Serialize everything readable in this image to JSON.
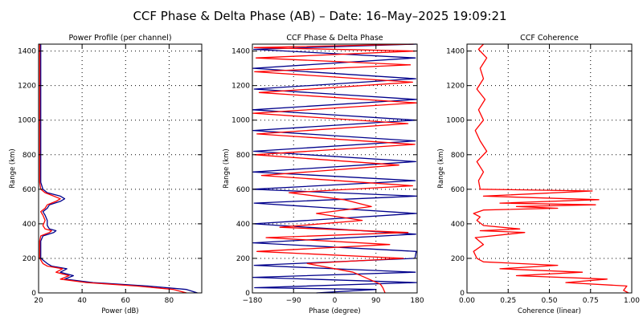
{
  "figure": {
    "title": "CCF Phase & Delta Phase (AB) – Date: 16–May–2025 19:09:21"
  },
  "colors": {
    "channel_a": "#00008b",
    "channel_b": "#ff0000",
    "axis": "#000000",
    "grid": "#000000"
  },
  "chart_data": [
    {
      "type": "line",
      "title": "Power Profile (per channel)",
      "xlabel": "Power (dB)",
      "ylabel": "Range (km)",
      "xlim": [
        20,
        95
      ],
      "ylim": [
        0,
        1440
      ],
      "xticks": [
        "20",
        "40",
        "60",
        "80"
      ],
      "xtick_values": [
        20,
        40,
        60,
        80
      ],
      "yticks": [
        "0",
        "200",
        "400",
        "600",
        "800",
        "1000",
        "1200",
        "1400"
      ],
      "ytick_values": [
        0,
        200,
        400,
        600,
        800,
        1000,
        1200,
        1400
      ],
      "grid": true,
      "series": [
        {
          "color": "#00008b",
          "x": [
            93,
            88,
            70,
            45,
            32,
            36,
            30,
            33,
            26,
            24,
            21,
            21,
            21,
            22,
            27,
            28,
            25,
            24,
            24,
            23,
            22,
            24,
            25,
            30,
            32,
            30,
            24,
            22,
            21,
            21,
            21,
            21,
            21,
            21,
            21,
            21,
            21,
            21
          ],
          "y": [
            0,
            20,
            40,
            60,
            80,
            100,
            120,
            140,
            155,
            170,
            200,
            260,
            300,
            330,
            350,
            360,
            370,
            390,
            420,
            450,
            470,
            490,
            510,
            530,
            545,
            560,
            580,
            600,
            640,
            700,
            800,
            900,
            1000,
            1100,
            1200,
            1300,
            1400,
            1440
          ]
        },
        {
          "color": "#ff0000",
          "x": [
            88,
            82,
            65,
            42,
            30,
            34,
            28,
            31,
            24,
            22,
            20.5,
            20.5,
            20.5,
            21,
            25,
            26,
            23,
            22,
            23,
            22,
            21,
            23,
            24,
            28,
            30,
            27,
            23,
            21,
            20.5,
            20.5,
            20.5,
            20.5,
            20.5,
            20.5,
            20.5,
            20.5,
            20.5,
            20.5
          ],
          "y": [
            0,
            20,
            40,
            60,
            80,
            100,
            120,
            140,
            155,
            170,
            200,
            260,
            300,
            330,
            350,
            360,
            370,
            390,
            420,
            450,
            470,
            490,
            510,
            530,
            545,
            560,
            580,
            600,
            640,
            700,
            800,
            900,
            1000,
            1100,
            1200,
            1300,
            1400,
            1440
          ]
        }
      ]
    },
    {
      "type": "line",
      "title": "CCF Phase & Delta Phase",
      "xlabel": "Phase (degree)",
      "ylabel": "Range (km)",
      "xlim": [
        -180,
        180
      ],
      "ylim": [
        0,
        1440
      ],
      "xticks": [
        "−180",
        "−90",
        "0",
        "90",
        "180"
      ],
      "xtick_values": [
        -180,
        -90,
        0,
        90,
        180
      ],
      "yticks": [
        "0",
        "200",
        "400",
        "600",
        "800",
        "1000",
        "1200",
        "1400"
      ],
      "ytick_values": [
        0,
        200,
        400,
        600,
        800,
        1000,
        1200,
        1400
      ],
      "grid": true,
      "series": [
        {
          "color": "#00008b",
          "x": [
            -40,
            90,
            -175,
            178,
            -178,
            176,
            -176,
            175,
            178,
            -178,
            177,
            -177,
            178,
            -176,
            179,
            -179,
            176,
            -178,
            177,
            -177,
            176,
            -178,
            177,
            -179,
            178,
            -176,
            177,
            -178,
            176,
            -177,
            178
          ],
          "y": [
            0,
            20,
            30,
            60,
            90,
            120,
            160,
            200,
            240,
            290,
            340,
            400,
            460,
            520,
            560,
            600,
            650,
            700,
            760,
            820,
            880,
            940,
            1000,
            1060,
            1120,
            1180,
            1240,
            1300,
            1360,
            1410,
            1440
          ]
        },
        {
          "color": "#ff0000",
          "x": [
            110,
            105,
            100,
            40,
            -60,
            150,
            -170,
            120,
            -150,
            160,
            -120,
            60,
            -40,
            80,
            20,
            -100,
            170,
            -160,
            140,
            -175,
            175,
            -170,
            160,
            -178,
            178,
            -165,
            170,
            -175,
            165,
            -172,
            176,
            -176,
            172
          ],
          "y": [
            0,
            30,
            50,
            120,
            170,
            200,
            240,
            280,
            320,
            350,
            380,
            420,
            460,
            500,
            540,
            580,
            620,
            680,
            740,
            800,
            860,
            920,
            980,
            1040,
            1100,
            1160,
            1220,
            1280,
            1320,
            1360,
            1400,
            1420,
            1440
          ]
        }
      ]
    },
    {
      "type": "line",
      "title": "CCF Coherence",
      "xlabel": "Coherence (linear)",
      "ylabel": "Range (km)",
      "xlim": [
        0,
        1
      ],
      "ylim": [
        0,
        1440
      ],
      "xticks": [
        "0.00",
        "0.25",
        "0.50",
        "0.75",
        "1.00"
      ],
      "xtick_values": [
        0,
        0.25,
        0.5,
        0.75,
        1
      ],
      "yticks": [
        "0",
        "200",
        "400",
        "600",
        "800",
        "1000",
        "1200",
        "1400"
      ],
      "ytick_values": [
        0,
        200,
        400,
        600,
        800,
        1000,
        1200,
        1400
      ],
      "grid": true,
      "series": [
        {
          "color": "#ff0000",
          "x": [
            0.98,
            0.95,
            0.97,
            0.6,
            0.85,
            0.3,
            0.7,
            0.2,
            0.55,
            0.1,
            0.06,
            0.04,
            0.1,
            0.05,
            0.35,
            0.08,
            0.32,
            0.1,
            0.06,
            0.08,
            0.04,
            0.1,
            0.55,
            0.3,
            0.78,
            0.2,
            0.8,
            0.1,
            0.76,
            0.08,
            0.07,
            0.1,
            0.06,
            0.12,
            0.08,
            0.05,
            0.1,
            0.07,
            0.11,
            0.06,
            0.1,
            0.08,
            0.12,
            0.07,
            0.1
          ],
          "y": [
            0,
            15,
            40,
            60,
            80,
            100,
            120,
            140,
            160,
            180,
            200,
            240,
            280,
            320,
            350,
            360,
            370,
            390,
            420,
            440,
            460,
            480,
            490,
            500,
            510,
            520,
            540,
            560,
            590,
            600,
            650,
            700,
            760,
            820,
            880,
            940,
            1000,
            1060,
            1120,
            1180,
            1240,
            1300,
            1360,
            1410,
            1440
          ]
        }
      ]
    }
  ]
}
